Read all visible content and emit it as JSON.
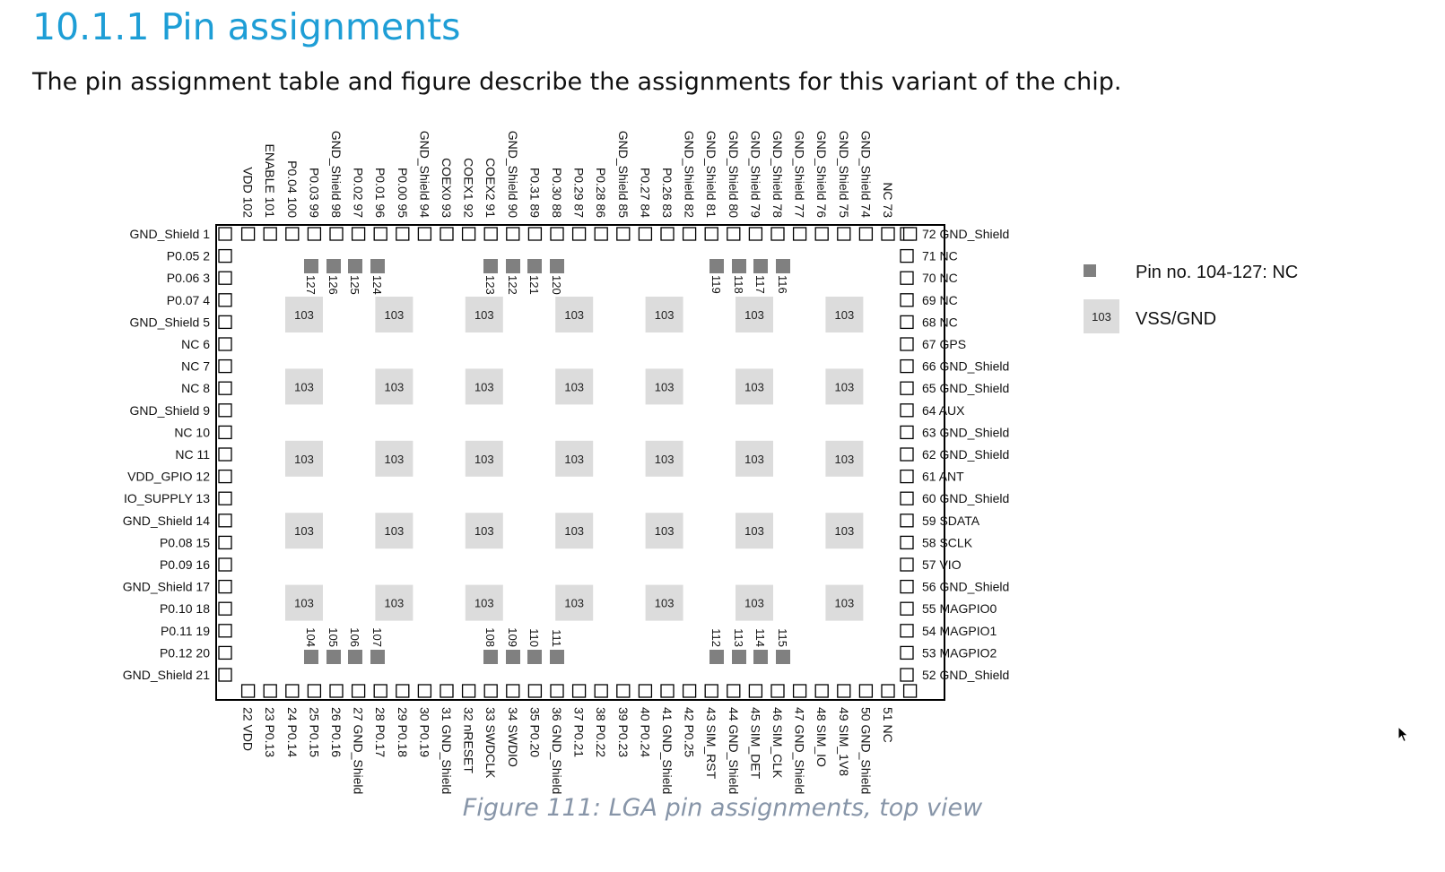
{
  "heading": "10.1.1 Pin assignments",
  "intro": "The pin assignment table and figure describe the assignments for this variant of the chip.",
  "caption": "Figure 111: LGA pin assignments, top view",
  "colors": {
    "heading": "#1e9ed6",
    "caption": "#8795a8",
    "nc_pad": "#808080",
    "gnd_pad": "#dcdcdc",
    "outline": "#000000"
  },
  "package": {
    "left_side": [
      "GND_Shield 1",
      "P0.05 2",
      "P0.06 3",
      "P0.07 4",
      "GND_Shield 5",
      "NC 6",
      "NC 7",
      "NC 8",
      "GND_Shield 9",
      "NC 10",
      "NC 11",
      "VDD_GPIO 12",
      "IO_SUPPLY 13",
      "GND_Shield 14",
      "P0.08 15",
      "P0.09 16",
      "GND_Shield 17",
      "P0.10 18",
      "P0.11 19",
      "P0.12 20",
      "GND_Shield 21"
    ],
    "right_side": [
      "72 GND_Shield",
      "71 NC",
      "70 NC",
      "69 NC",
      "68 NC",
      "67 GPS",
      "66 GND_Shield",
      "65 GND_Shield",
      "64 AUX",
      "63 GND_Shield",
      "62 GND_Shield",
      "61 ANT",
      "60 GND_Shield",
      "59 SDATA",
      "58 SCLK",
      "57 VIO",
      "56 GND_Shield",
      "55 MAGPIO0",
      "54 MAGPIO1",
      "53 MAGPIO2",
      "52 GND_Shield"
    ],
    "top_side": [
      "VDD 102",
      "ENABLE 101",
      "P0.04 100",
      "P0.03 99",
      "GND_Shield 98",
      "P0.02 97",
      "P0.01 96",
      "P0.00 95",
      "GND_Shield 94",
      "COEX0 93",
      "COEX1 92",
      "COEX2 91",
      "GND_Shield 90",
      "P0.31 89",
      "P0.30 88",
      "P0.29 87",
      "P0.28 86",
      "GND_Shield 85",
      "P0.27 84",
      "P0.26 83",
      "GND_Shield 82",
      "GND_Shield 81",
      "GND_Shield 80",
      "GND_Shield 79",
      "GND_Shield 78",
      "GND_Shield 77",
      "GND_Shield 76",
      "GND_Shield 75",
      "GND_Shield 74",
      "NC 73"
    ],
    "bottom_side": [
      "22 VDD",
      "23 P0.13",
      "24 P0.14",
      "25 P0.15",
      "26 P0.16",
      "27 GND_Shield",
      "28 P0.17",
      "29 P0.18",
      "30 P0.19",
      "31 GND_Shield",
      "32 nRESET",
      "33 SWDCLK",
      "34 SWDIO",
      "35 P0.20",
      "36 GND_Shield",
      "37 P0.21",
      "38 P0.22",
      "39 P0.23",
      "40 P0.24",
      "41 GND_Shield",
      "42 P0.25",
      "43 SIM_RST",
      "44 GND_Shield",
      "45 SIM_DET",
      "46 SIM_CLK",
      "47 GND_Shield",
      "48 SIM_IO",
      "49 SIM_1V8",
      "50 GND_Shield",
      "51 NC"
    ],
    "top_inner_pads": [
      "127",
      "126",
      "125",
      "124",
      "123",
      "122",
      "121",
      "120",
      "119",
      "118",
      "117",
      "116"
    ],
    "bottom_inner_pads": [
      "104",
      "105",
      "106",
      "107",
      "108",
      "109",
      "110",
      "111",
      "112",
      "113",
      "114",
      "115"
    ],
    "ground_pad_label": "103",
    "ground_pad_grid": {
      "rows": 5,
      "columns": 7
    }
  },
  "legend": {
    "nc_label": "Pin no. 104-127: NC",
    "gnd_swatch": "103",
    "gnd_label": "VSS/GND"
  }
}
